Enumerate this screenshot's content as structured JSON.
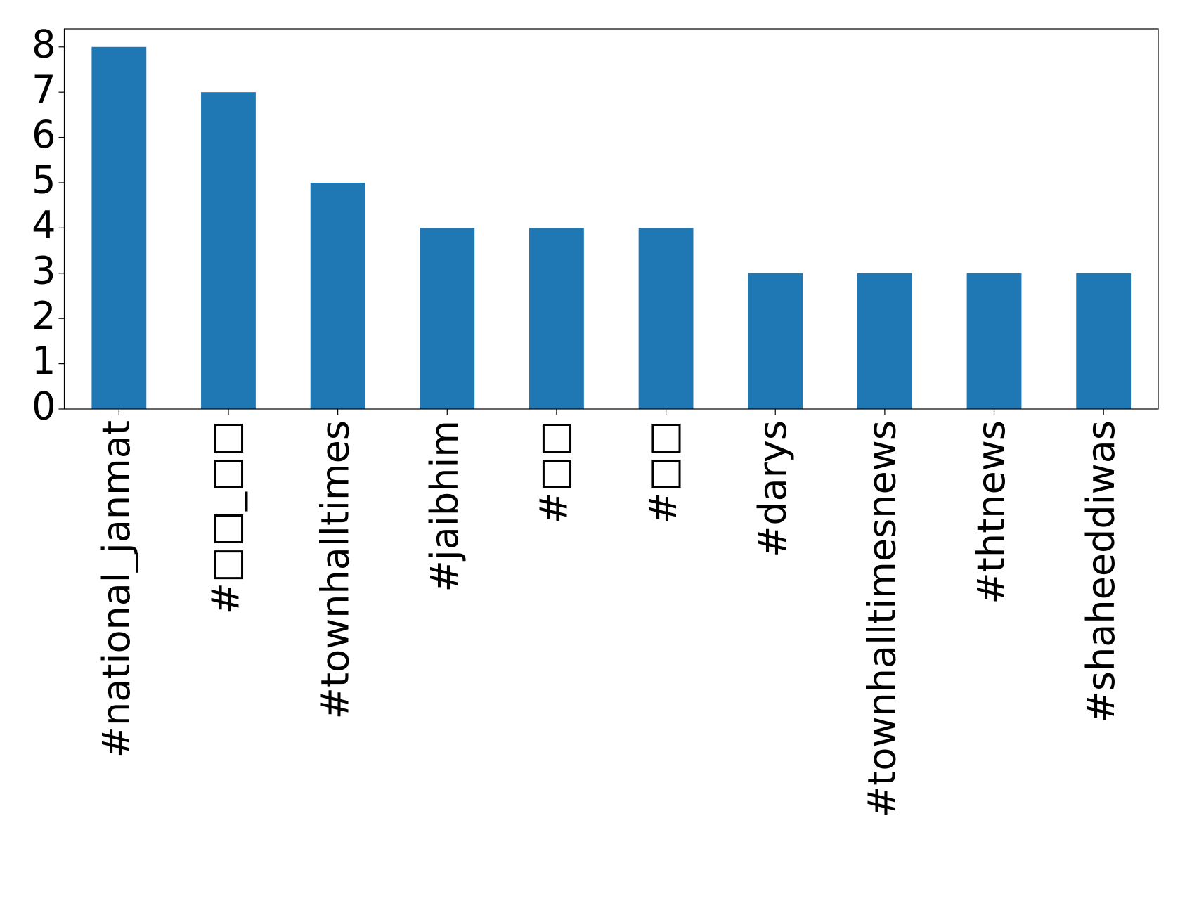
{
  "chart_data": {
    "type": "bar",
    "categories": [
      "#national_janmat",
      "#□□_□□",
      "#townhalltimes",
      "#jaibhim",
      "#□□",
      "#□□",
      "#darys",
      "#townhalltimesnews",
      "#thtnews",
      "#shaheeddiwas"
    ],
    "values": [
      8,
      7,
      5,
      4,
      4,
      4,
      3,
      3,
      3,
      3
    ],
    "color": "#1f77b4",
    "ylim": [
      0,
      8.4
    ],
    "yticks": [
      0,
      1,
      2,
      3,
      4,
      5,
      6,
      7,
      8
    ]
  }
}
